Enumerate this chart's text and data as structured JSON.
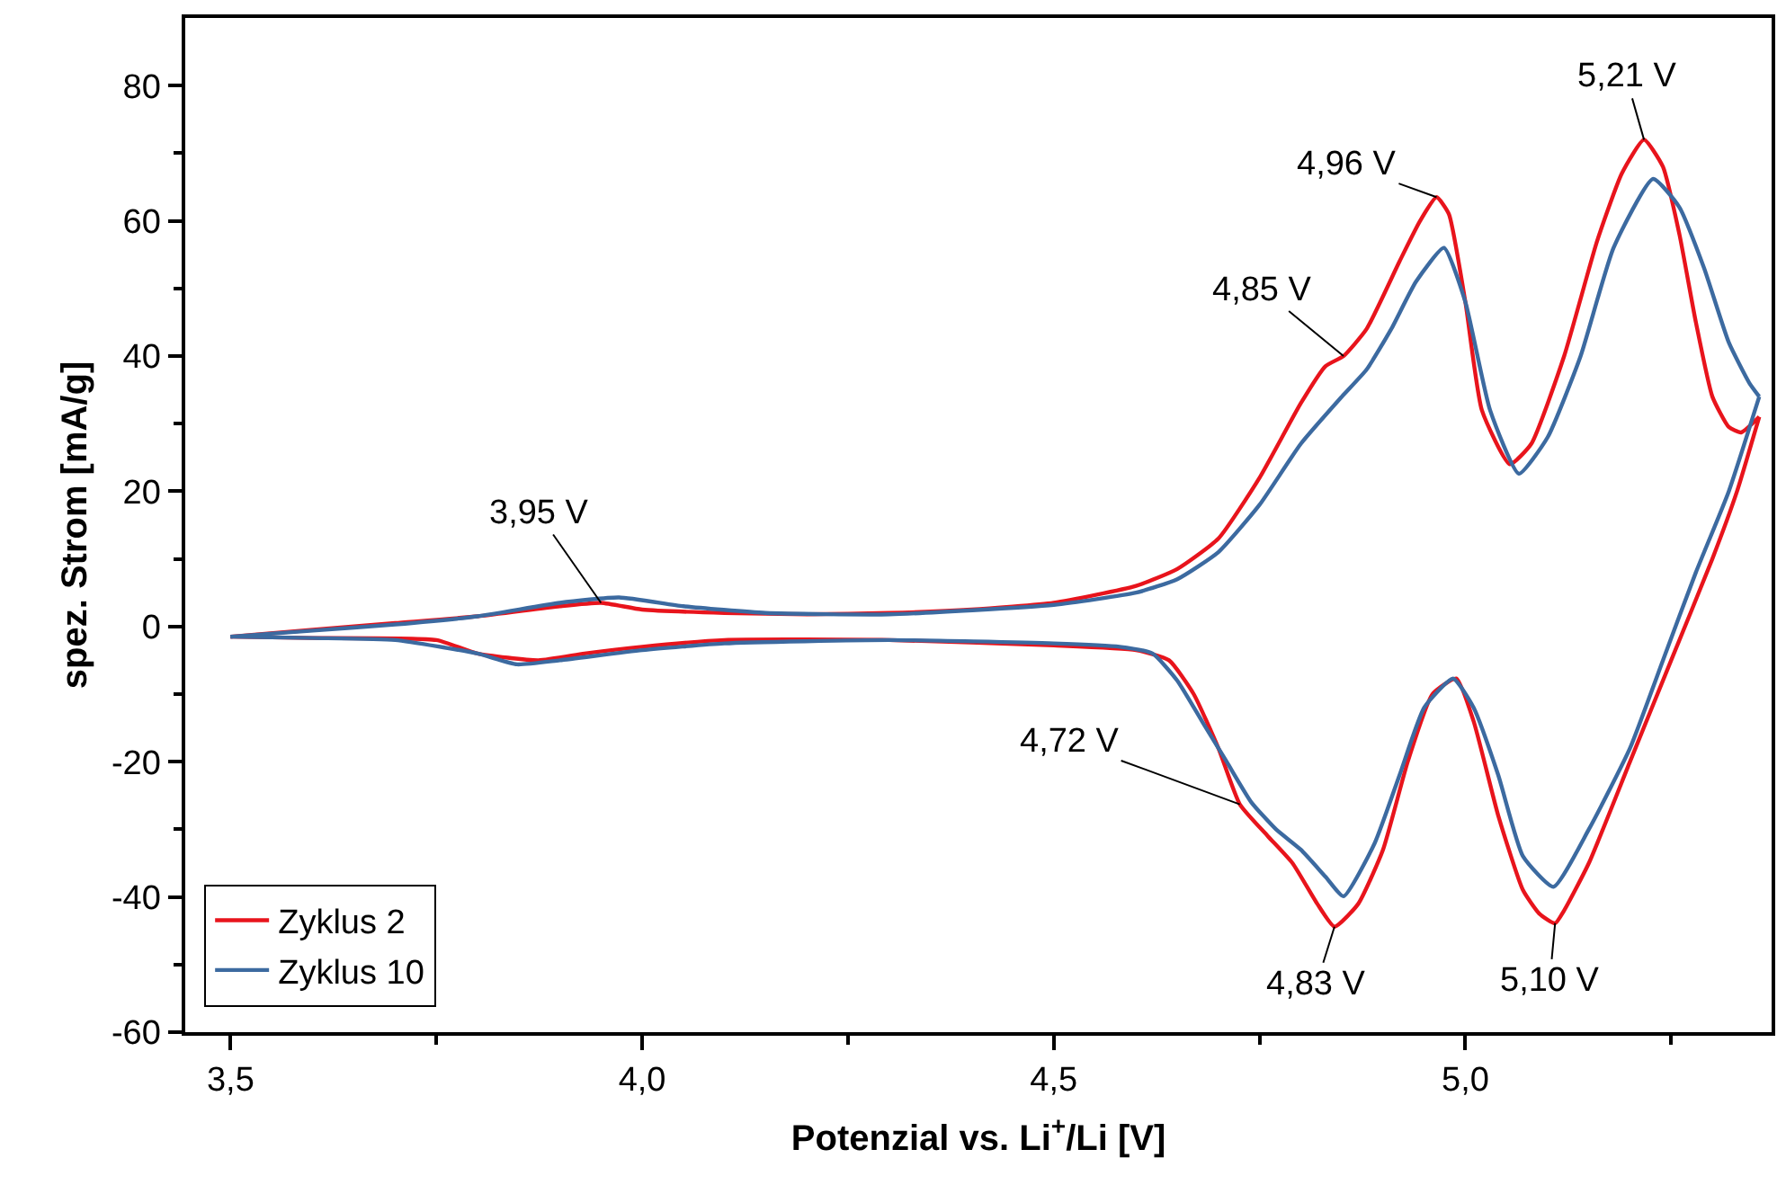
{
  "chart_data": {
    "type": "line",
    "xlabel": "Potenzial vs. Li$^{+}$/Li [V]",
    "ylabel": "spez. Strom [mA/g]",
    "xlim": [
      3.445,
      5.372
    ],
    "ylim": [
      -60,
      90
    ],
    "xticks": [
      {
        "value": 3.5,
        "label": "3,5"
      },
      {
        "value": 3.75,
        "label": null
      },
      {
        "value": 4.0,
        "label": "4,0"
      },
      {
        "value": 4.25,
        "label": null
      },
      {
        "value": 4.5,
        "label": "4,5"
      },
      {
        "value": 4.75,
        "label": null
      },
      {
        "value": 5.0,
        "label": "5,0"
      },
      {
        "value": 5.25,
        "label": null
      }
    ],
    "yticks": [
      -60,
      {
        "value": -50,
        "label": null
      },
      -40,
      {
        "value": -30,
        "label": null
      },
      -20,
      {
        "value": -10,
        "label": null
      },
      0,
      {
        "value": 10,
        "label": null
      },
      20,
      {
        "value": 30,
        "label": null
      },
      40,
      {
        "value": 50,
        "label": null
      },
      60,
      {
        "value": 70,
        "label": null
      },
      80
    ],
    "legend": "bottom left",
    "marker": "none",
    "line_style": "solid",
    "series": [
      {
        "name": "Zyklus 2",
        "color": "#e8141c",
        "x": [
          3.5,
          3.6,
          3.7,
          3.8,
          3.9,
          3.95,
          4.0,
          4.1,
          4.2,
          4.3,
          4.4,
          4.5,
          4.6,
          4.65,
          4.7,
          4.75,
          4.8,
          4.83,
          4.852,
          4.88,
          4.92,
          4.945,
          4.965,
          4.98,
          5.0,
          5.02,
          5.054,
          5.08,
          5.12,
          5.16,
          5.19,
          5.217,
          5.24,
          5.26,
          5.28,
          5.3,
          5.32,
          5.335,
          5.357
        ],
        "values": [
          -1.5,
          -0.5,
          0.5,
          1.5,
          3,
          3.5,
          2.5,
          2,
          1.8,
          2,
          2.5,
          3.5,
          6,
          8.5,
          13,
          22,
          33,
          38.5,
          40,
          44,
          54,
          60,
          63.5,
          61,
          48,
          32,
          24,
          27,
          40,
          57,
          67,
          72,
          68,
          58,
          45,
          34,
          29.5,
          28.7,
          31
        ]
      },
      {
        "color": "#e8141c",
        "x": [
          3.5,
          3.6,
          3.75,
          3.8,
          3.874,
          3.93,
          4.0,
          4.1,
          4.3,
          4.5,
          4.6,
          4.64,
          4.67,
          4.7,
          4.726,
          4.76,
          4.79,
          4.82,
          4.841,
          4.87,
          4.9,
          4.93,
          4.96,
          4.989,
          5.01,
          5.04,
          5.07,
          5.09,
          5.109,
          5.12,
          5.15,
          5.2,
          5.25,
          5.3,
          5.33,
          5.357
        ],
        "values": [
          -1.5,
          -1.7,
          -2,
          -4,
          -5,
          -4,
          -3,
          -2,
          -2,
          -2.8,
          -3.5,
          -5,
          -10,
          -18,
          -26.3,
          -31,
          -35,
          -41,
          -44.4,
          -41,
          -33,
          -20,
          -10,
          -7.7,
          -14,
          -28,
          -39,
          -42.5,
          -43.9,
          -42,
          -35,
          -20,
          -5,
          10,
          20,
          31
        ]
      },
      {
        "name": "Zyklus 10",
        "color": "#3c6aa0",
        "x": [
          3.5,
          3.6,
          3.7,
          3.8,
          3.9,
          3.972,
          4.05,
          4.15,
          4.3,
          4.5,
          4.6,
          4.65,
          4.7,
          4.75,
          4.8,
          4.85,
          4.88,
          4.91,
          4.94,
          4.974,
          5.0,
          5.03,
          5.065,
          5.1,
          5.14,
          5.18,
          5.228,
          5.26,
          5.29,
          5.32,
          5.345,
          5.357
        ],
        "values": [
          -1.5,
          -0.6,
          0.3,
          1.5,
          3.5,
          4.3,
          3,
          2,
          1.8,
          3.2,
          5,
          7,
          11,
          18,
          27,
          34,
          38,
          44,
          51,
          56,
          48,
          32,
          22.6,
          28,
          40,
          56,
          66.2,
          62,
          53,
          42,
          36,
          34
        ]
      },
      {
        "color": "#3c6aa0",
        "x": [
          3.5,
          3.6,
          3.7,
          3.8,
          3.848,
          3.9,
          4.0,
          4.1,
          4.3,
          4.5,
          4.58,
          4.62,
          4.65,
          4.68,
          4.71,
          4.74,
          4.77,
          4.8,
          4.83,
          4.852,
          4.89,
          4.92,
          4.95,
          4.985,
          5.01,
          5.04,
          5.07,
          5.107,
          5.15,
          5.2,
          5.24,
          5.28,
          5.32,
          5.357
        ],
        "values": [
          -1.5,
          -1.7,
          -2,
          -4,
          -5.6,
          -5,
          -3.5,
          -2.5,
          -2,
          -2.5,
          -3,
          -4,
          -8,
          -14,
          -20,
          -26,
          -30,
          -33,
          -37,
          -39.9,
          -32,
          -22,
          -12,
          -7.7,
          -12,
          -22,
          -34,
          -38.5,
          -30,
          -18,
          -5,
          8,
          20,
          34
        ]
      }
    ],
    "annotations": [
      {
        "text": "3,95 V",
        "x": 3.95,
        "y": 3.5
      },
      {
        "text": "4,85 V",
        "x": 4.852,
        "y": 40
      },
      {
        "text": "4,96 V",
        "x": 4.965,
        "y": 63.5
      },
      {
        "text": "5,21 V",
        "x": 5.217,
        "y": 72
      },
      {
        "text": "4,72 V",
        "x": 4.726,
        "y": -26.3
      },
      {
        "text": "4,83 V",
        "x": 4.841,
        "y": -44.4
      },
      {
        "text": "5,10 V",
        "x": 5.109,
        "y": -43.9
      }
    ]
  }
}
